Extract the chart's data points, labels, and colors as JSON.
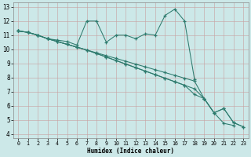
{
  "xlabel": "Humidex (Indice chaleur)",
  "background_color": "#cce8e8",
  "grid_color": "#b0c8c8",
  "line_color": "#2e7b6e",
  "xlim": [
    -0.5,
    23.5
  ],
  "ylim": [
    3.7,
    13.3
  ],
  "xticks": [
    0,
    1,
    2,
    3,
    4,
    5,
    6,
    7,
    8,
    9,
    10,
    11,
    12,
    13,
    14,
    15,
    16,
    17,
    18,
    19,
    20,
    21,
    22,
    23
  ],
  "yticks": [
    4,
    5,
    6,
    7,
    8,
    9,
    10,
    11,
    12,
    13
  ],
  "s1_x": [
    0,
    1,
    2,
    3,
    4,
    5,
    6,
    7,
    8,
    9,
    10,
    11,
    12,
    13,
    14,
    15,
    16,
    17,
    18
  ],
  "s1_y": [
    11.3,
    11.2,
    11.0,
    10.75,
    10.65,
    10.55,
    10.3,
    12.0,
    12.0,
    10.5,
    11.0,
    11.0,
    10.75,
    11.1,
    11.0,
    12.4,
    12.85,
    12.0,
    7.9
  ],
  "s2_x": [
    0,
    1,
    2,
    3,
    4,
    5,
    6,
    7,
    8,
    9,
    10,
    11,
    12,
    13,
    14,
    15,
    16,
    17,
    18,
    19,
    20,
    21,
    22
  ],
  "s2_y": [
    11.3,
    11.2,
    11.0,
    10.75,
    10.55,
    10.35,
    10.15,
    9.95,
    9.75,
    9.55,
    9.35,
    9.15,
    8.95,
    8.75,
    8.55,
    8.35,
    8.15,
    7.95,
    7.75,
    6.5,
    5.5,
    4.75,
    4.6
  ],
  "s3_x": [
    0,
    1,
    2,
    3,
    4,
    5,
    6,
    7,
    8,
    9,
    10,
    11,
    12,
    13,
    14,
    15,
    16,
    17,
    18,
    19,
    20,
    21,
    22,
    23
  ],
  "s3_y": [
    11.3,
    11.2,
    11.0,
    10.75,
    10.55,
    10.35,
    10.15,
    9.95,
    9.7,
    9.45,
    9.2,
    8.95,
    8.7,
    8.45,
    8.2,
    7.95,
    7.7,
    7.45,
    7.2,
    6.5,
    5.5,
    5.8,
    4.8,
    4.5
  ],
  "s4_x": [
    0,
    1,
    2,
    3,
    4,
    5,
    6,
    7,
    8,
    9,
    10,
    11,
    12,
    13,
    14,
    15,
    16,
    17,
    18,
    19,
    20,
    21,
    22,
    23
  ],
  "s4_y": [
    11.3,
    11.2,
    11.0,
    10.75,
    10.55,
    10.35,
    10.15,
    9.95,
    9.7,
    9.45,
    9.2,
    8.95,
    8.7,
    8.45,
    8.2,
    7.95,
    7.7,
    7.45,
    6.8,
    6.5,
    5.5,
    5.8,
    4.8,
    4.5
  ]
}
